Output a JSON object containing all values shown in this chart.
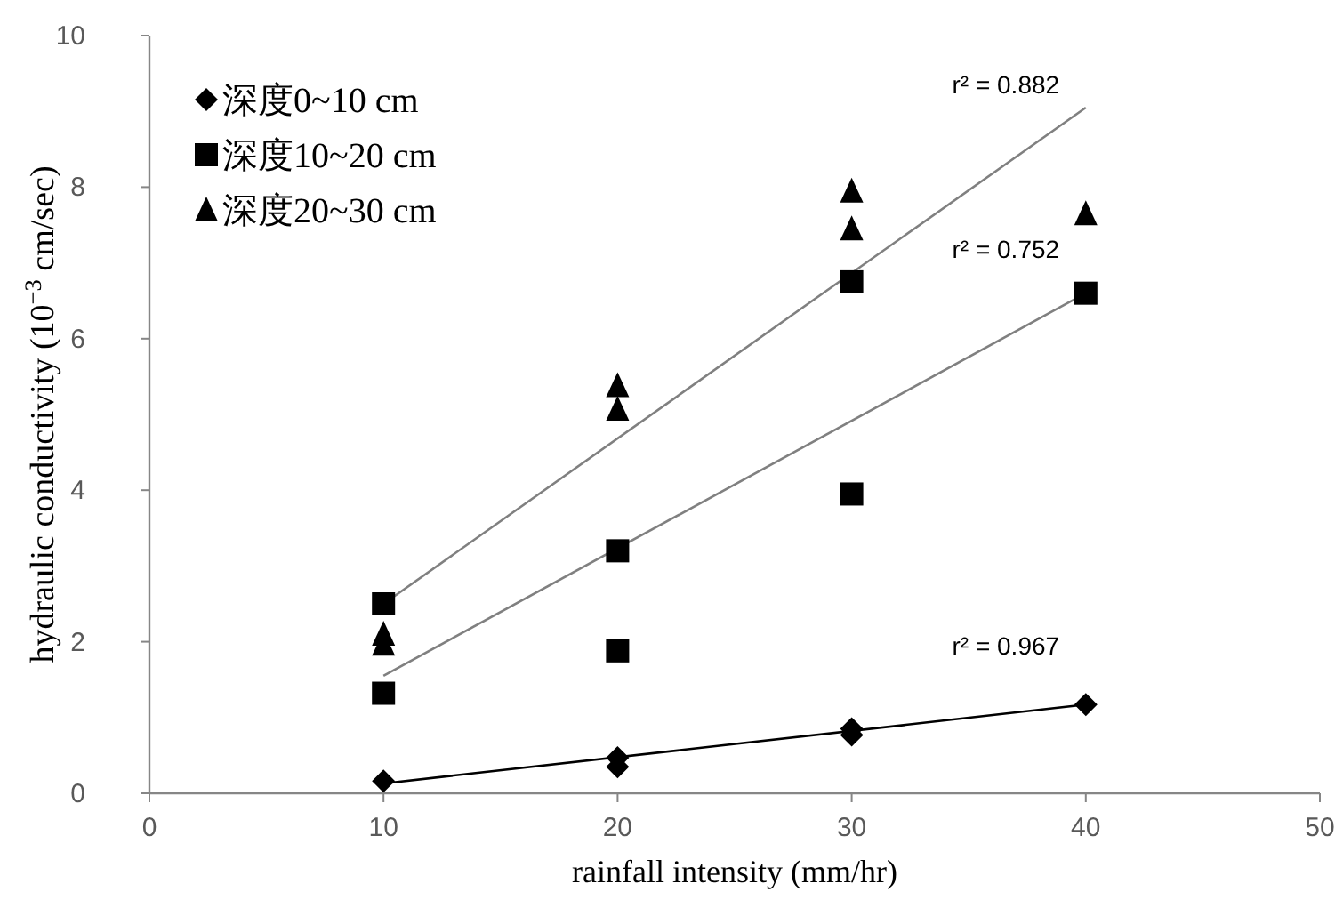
{
  "chart_data": {
    "type": "scatter",
    "xlabel": "rainfall intensity (mm/hr)",
    "ylabel": "hydraulic conductivity (10$^{−3}$ cm/sec)",
    "xlim": [
      0,
      50
    ],
    "xticks": [
      0,
      10,
      20,
      30,
      40,
      50
    ],
    "ylim": [
      0,
      10
    ],
    "yticks": [
      0,
      2,
      4,
      6,
      8,
      10
    ],
    "grid": false,
    "legend": "top left",
    "series": [
      {
        "name": "深度0~10 cm",
        "color": "#000000",
        "marker": "diamond",
        "x": [
          10,
          20,
          20,
          30,
          30,
          40
        ],
        "values": [
          0.16,
          0.47,
          0.35,
          0.85,
          0.77,
          1.17
        ]
      },
      {
        "name": "深度10~20 cm",
        "color": "#000000",
        "marker": "square",
        "x": [
          10,
          10,
          20,
          20,
          30,
          30,
          40
        ],
        "values": [
          2.5,
          1.32,
          3.2,
          1.88,
          6.75,
          3.95,
          6.6
        ]
      },
      {
        "name": "深度20~30 cm",
        "color": "#000000",
        "marker": "triangle",
        "x": [
          10,
          10,
          20,
          20,
          30,
          30,
          40
        ],
        "values": [
          2.1,
          1.97,
          5.38,
          5.07,
          7.95,
          7.45,
          7.65
        ]
      },
      {
        "type": "line",
        "color": "#000000",
        "marker": "none",
        "x": [
          10,
          40
        ],
        "values": [
          0.13,
          1.17
        ]
      },
      {
        "type": "line",
        "color": "#808080",
        "marker": "none",
        "x": [
          10,
          40
        ],
        "values": [
          1.55,
          6.6
        ]
      },
      {
        "type": "line",
        "color": "#808080",
        "marker": "none",
        "x": [
          10,
          40
        ],
        "values": [
          2.5,
          9.05
        ]
      }
    ],
    "annotations": [
      "r² = 0.882",
      "r² = 0.752",
      "r² = 0.967"
    ]
  }
}
